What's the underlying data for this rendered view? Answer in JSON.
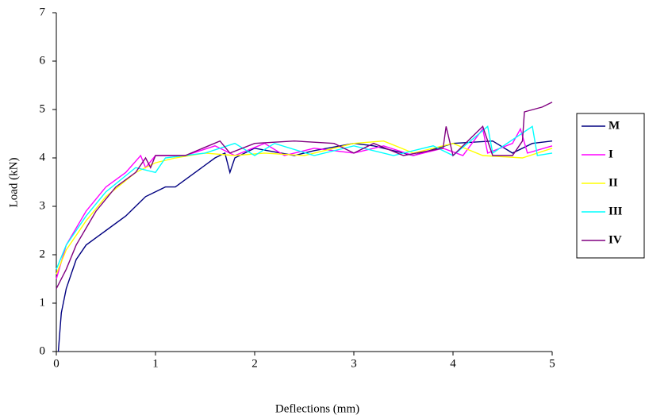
{
  "chart_data": {
    "type": "line",
    "xlabel": "Deflections (mm)",
    "ylabel": "Load (kN)",
    "xlim": [
      0,
      5
    ],
    "xticks": [
      0,
      1,
      2,
      3,
      4,
      5
    ],
    "ylim": [
      0,
      7
    ],
    "yticks": [
      0,
      1,
      2,
      3,
      4,
      5,
      6,
      7
    ],
    "grid": false,
    "legend": "right",
    "series": [
      {
        "name": "M",
        "color": "#000080",
        "x": [
          0.02,
          0.05,
          0.1,
          0.2,
          0.3,
          0.5,
          0.7,
          0.9,
          1.1,
          1.2,
          1.4,
          1.6,
          1.7,
          1.75,
          1.8,
          2.0,
          2.4,
          2.6,
          3.0,
          3.2,
          3.6,
          4.0,
          4.4,
          4.6,
          4.8,
          5.0
        ],
        "values": [
          0,
          0.8,
          1.3,
          1.9,
          2.2,
          2.5,
          2.8,
          3.2,
          3.4,
          3.4,
          3.7,
          4.0,
          4.1,
          3.7,
          4.0,
          4.2,
          4.05,
          4.15,
          4.3,
          4.25,
          4.05,
          4.3,
          4.35,
          4.1,
          4.3,
          4.35
        ]
      },
      {
        "name": "I",
        "color": "#ff00ff",
        "x": [
          0,
          0.1,
          0.3,
          0.5,
          0.7,
          0.85,
          0.9,
          1.0,
          1.3,
          1.6,
          1.8,
          2.1,
          2.3,
          2.6,
          3.0,
          3.3,
          3.6,
          3.9,
          4.1,
          4.3,
          4.35,
          4.6,
          4.68,
          4.75,
          5.0
        ],
        "values": [
          1.5,
          2.2,
          2.9,
          3.4,
          3.7,
          4.05,
          3.8,
          4.05,
          4.05,
          4.25,
          4.05,
          4.3,
          4.05,
          4.2,
          4.1,
          4.25,
          4.05,
          4.2,
          4.05,
          4.6,
          4.1,
          4.3,
          4.6,
          4.1,
          4.25
        ]
      },
      {
        "name": "II",
        "color": "#ffff00",
        "x": [
          0,
          0.1,
          0.3,
          0.5,
          0.8,
          1.0,
          1.2,
          1.5,
          1.8,
          2.1,
          2.5,
          3.0,
          3.3,
          3.6,
          4.0,
          4.3,
          4.7,
          5.0
        ],
        "values": [
          1.6,
          2.1,
          2.7,
          3.2,
          3.7,
          3.9,
          4.0,
          4.1,
          4.05,
          4.1,
          4.05,
          4.3,
          4.35,
          4.1,
          4.3,
          4.05,
          4.0,
          4.2
        ]
      },
      {
        "name": "III",
        "color": "#00ffff",
        "x": [
          0,
          0.1,
          0.3,
          0.5,
          0.8,
          1.0,
          1.1,
          1.5,
          1.8,
          2.0,
          2.2,
          2.6,
          3.0,
          3.4,
          3.8,
          4.0,
          4.35,
          4.4,
          4.8,
          4.85,
          5.0
        ],
        "values": [
          1.7,
          2.2,
          2.8,
          3.3,
          3.8,
          3.7,
          4.0,
          4.1,
          4.3,
          4.05,
          4.3,
          4.05,
          4.25,
          4.05,
          4.25,
          4.05,
          4.65,
          4.1,
          4.65,
          4.05,
          4.1
        ]
      },
      {
        "name": "IV",
        "color": "#800080",
        "x": [
          0,
          0.1,
          0.2,
          0.4,
          0.6,
          0.8,
          0.9,
          0.95,
          1.0,
          1.3,
          1.65,
          1.75,
          2.0,
          2.4,
          2.8,
          3.0,
          3.2,
          3.5,
          3.9,
          3.93,
          4.0,
          4.3,
          4.4,
          4.6,
          4.7,
          4.72,
          4.9,
          5.0
        ],
        "values": [
          1.3,
          1.7,
          2.2,
          2.9,
          3.4,
          3.7,
          4.0,
          3.8,
          4.05,
          4.05,
          4.35,
          4.1,
          4.3,
          4.35,
          4.3,
          4.1,
          4.3,
          4.05,
          4.2,
          4.65,
          4.05,
          4.65,
          4.05,
          4.05,
          4.35,
          4.95,
          5.05,
          5.15
        ]
      }
    ]
  }
}
